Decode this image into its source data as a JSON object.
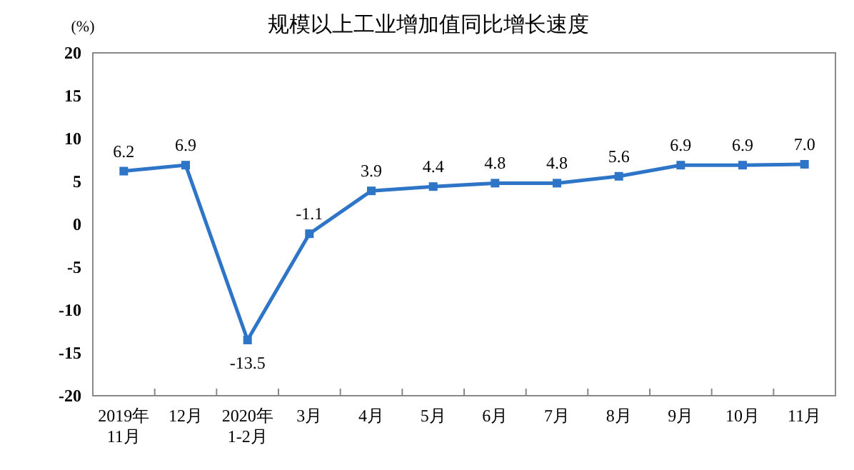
{
  "chart_data": {
    "type": "line",
    "title": "规模以上工业增加值同比增长速度",
    "ylabel": "(%)",
    "categories": [
      "2019年\n11月",
      "12月",
      "2020年\n1-2月",
      "3月",
      "4月",
      "5月",
      "6月",
      "7月",
      "8月",
      "9月",
      "10月",
      "11月"
    ],
    "series": [
      {
        "color": "#2e75c8",
        "values": [
          6.2,
          6.9,
          -13.5,
          -1.1,
          3.9,
          4.4,
          4.8,
          4.8,
          5.6,
          6.9,
          6.9,
          7.0
        ]
      }
    ],
    "value_labels": [
      "6.2",
      "6.9",
      "-13.5",
      "-1.1",
      "3.9",
      "4.4",
      "4.8",
      "4.8",
      "5.6",
      "6.9",
      "6.9",
      "7.0"
    ],
    "ylim": [
      -20,
      20
    ],
    "yticks": [
      -20,
      -15,
      -10,
      -5,
      0,
      5,
      10,
      15,
      20
    ],
    "marker": "square",
    "line_style": "solid",
    "grid": false
  }
}
